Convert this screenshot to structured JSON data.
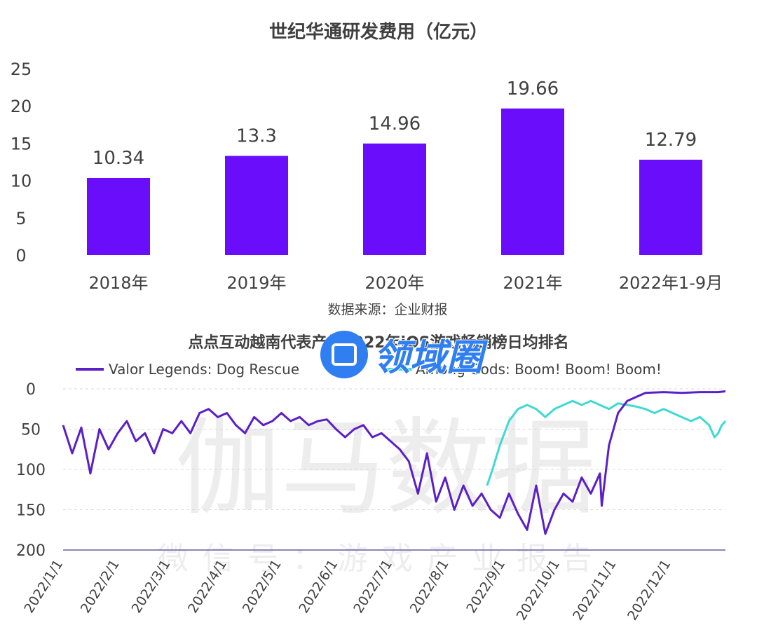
{
  "watermark": {
    "logo_text": "领域圈",
    "chart_watermark": "伽马数据",
    "chart_watermark_sub": "微信号：游戏产业报告"
  },
  "colors": {
    "bar": "#6a0dfa",
    "series_purple": "#5b1fc7",
    "series_teal": "#3fd9d4",
    "logo_blue": "#2f7ff2"
  },
  "chart_data": [
    {
      "type": "bar",
      "title": "世纪华通研发费用（亿元）",
      "categories": [
        "2018年",
        "2019年",
        "2020年",
        "2021年",
        "2022年1-9月"
      ],
      "values": [
        10.34,
        13.3,
        14.96,
        19.66,
        12.79
      ],
      "data_labels": [
        "10.34",
        "13.3",
        "14.96",
        "19.66",
        "12.79"
      ],
      "ylim": [
        0,
        25
      ],
      "yticks": [
        "0",
        "5",
        "10",
        "15",
        "20",
        "25"
      ],
      "source": "数据来源：企业财报"
    },
    {
      "type": "line",
      "title": "点点互动越南代表产品2022年iOS游戏畅销榜日均排名",
      "y_inverted": true,
      "ylim": [
        0,
        200
      ],
      "yticks": [
        "0",
        "50",
        "100",
        "150",
        "200"
      ],
      "x_tick_labels": [
        "2022/1/1",
        "2022/2/1",
        "2022/3/1",
        "2022/4/1",
        "2022/5/1",
        "2022/6/1",
        "2022/7/1",
        "2022/8/1",
        "2022/9/1",
        "2022/10/1",
        "2022/11/1",
        "2022/12/1"
      ],
      "x_tick_days": [
        0,
        31,
        59,
        90,
        120,
        151,
        181,
        212,
        243,
        273,
        304,
        334
      ],
      "series": [
        {
          "name": "Valor Legends: Dog Rescue",
          "points": [
            [
              0,
              45
            ],
            [
              5,
              80
            ],
            [
              10,
              48
            ],
            [
              15,
              105
            ],
            [
              20,
              50
            ],
            [
              25,
              75
            ],
            [
              30,
              55
            ],
            [
              35,
              40
            ],
            [
              40,
              65
            ],
            [
              45,
              55
            ],
            [
              50,
              80
            ],
            [
              55,
              50
            ],
            [
              60,
              55
            ],
            [
              65,
              40
            ],
            [
              70,
              55
            ],
            [
              75,
              30
            ],
            [
              80,
              25
            ],
            [
              85,
              35
            ],
            [
              90,
              30
            ],
            [
              95,
              45
            ],
            [
              100,
              55
            ],
            [
              105,
              35
            ],
            [
              110,
              45
            ],
            [
              115,
              40
            ],
            [
              120,
              30
            ],
            [
              125,
              40
            ],
            [
              130,
              35
            ],
            [
              135,
              45
            ],
            [
              140,
              40
            ],
            [
              145,
              38
            ],
            [
              150,
              50
            ],
            [
              155,
              60
            ],
            [
              160,
              50
            ],
            [
              165,
              45
            ],
            [
              170,
              60
            ],
            [
              175,
              55
            ],
            [
              180,
              65
            ],
            [
              185,
              75
            ],
            [
              190,
              90
            ],
            [
              195,
              130
            ],
            [
              200,
              80
            ],
            [
              205,
              140
            ],
            [
              210,
              110
            ],
            [
              215,
              150
            ],
            [
              220,
              120
            ],
            [
              225,
              145
            ],
            [
              230,
              130
            ],
            [
              235,
              150
            ],
            [
              240,
              160
            ],
            [
              245,
              130
            ],
            [
              250,
              155
            ],
            [
              255,
              175
            ],
            [
              260,
              120
            ],
            [
              265,
              180
            ],
            [
              270,
              150
            ],
            [
              275,
              130
            ],
            [
              280,
              140
            ],
            [
              285,
              110
            ],
            [
              290,
              130
            ],
            [
              295,
              105
            ],
            [
              296,
              145
            ],
            [
              300,
              70
            ],
            [
              305,
              30
            ],
            [
              310,
              15
            ],
            [
              320,
              5
            ],
            [
              330,
              4
            ],
            [
              340,
              5
            ],
            [
              350,
              4
            ],
            [
              360,
              4
            ],
            [
              364,
              3
            ]
          ]
        },
        {
          "name": "Among Gods: Boom! Boom! Boom!",
          "points": [
            [
              233,
              120
            ],
            [
              236,
              100
            ],
            [
              240,
              70
            ],
            [
              245,
              40
            ],
            [
              250,
              25
            ],
            [
              255,
              20
            ],
            [
              260,
              25
            ],
            [
              265,
              35
            ],
            [
              270,
              25
            ],
            [
              275,
              20
            ],
            [
              280,
              15
            ],
            [
              285,
              20
            ],
            [
              290,
              15
            ],
            [
              295,
              20
            ],
            [
              300,
              25
            ],
            [
              305,
              18
            ],
            [
              310,
              20
            ],
            [
              315,
              22
            ],
            [
              320,
              25
            ],
            [
              325,
              30
            ],
            [
              330,
              25
            ],
            [
              335,
              30
            ],
            [
              340,
              35
            ],
            [
              345,
              40
            ],
            [
              350,
              35
            ],
            [
              355,
              45
            ],
            [
              358,
              60
            ],
            [
              360,
              55
            ],
            [
              362,
              45
            ],
            [
              364,
              40
            ]
          ]
        }
      ]
    }
  ]
}
